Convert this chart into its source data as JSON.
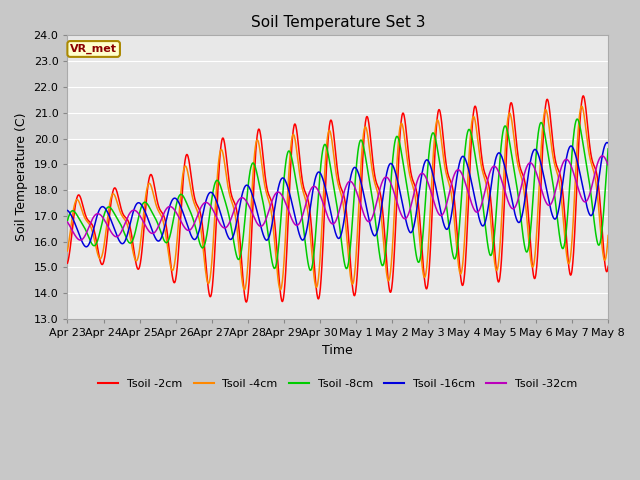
{
  "title": "Soil Temperature Set 3",
  "xlabel": "Time",
  "ylabel": "Soil Temperature (C)",
  "ylim": [
    13.0,
    24.0
  ],
  "yticks": [
    13.0,
    14.0,
    15.0,
    16.0,
    17.0,
    18.0,
    19.0,
    20.0,
    21.0,
    22.0,
    23.0,
    24.0
  ],
  "xtick_labels": [
    "Apr 23",
    "Apr 24",
    "Apr 25",
    "Apr 26",
    "Apr 27",
    "Apr 28",
    "Apr 29",
    "Apr 30",
    "May 1",
    "May 2",
    "May 3",
    "May 4",
    "May 5",
    "May 6",
    "May 7",
    "May 8"
  ],
  "series_colors": [
    "#ff0000",
    "#ff8800",
    "#00cc00",
    "#0000dd",
    "#bb00bb"
  ],
  "series_labels": [
    "Tsoil -2cm",
    "Tsoil -4cm",
    "Tsoil -8cm",
    "Tsoil -16cm",
    "Tsoil -32cm"
  ],
  "plot_bg_color": "#e8e8e8",
  "fig_bg_color": "#c8c8c8",
  "grid_color": "#ffffff",
  "annotation_text": "VR_met",
  "annotation_bg": "#ffffcc",
  "annotation_border": "#aa8800"
}
